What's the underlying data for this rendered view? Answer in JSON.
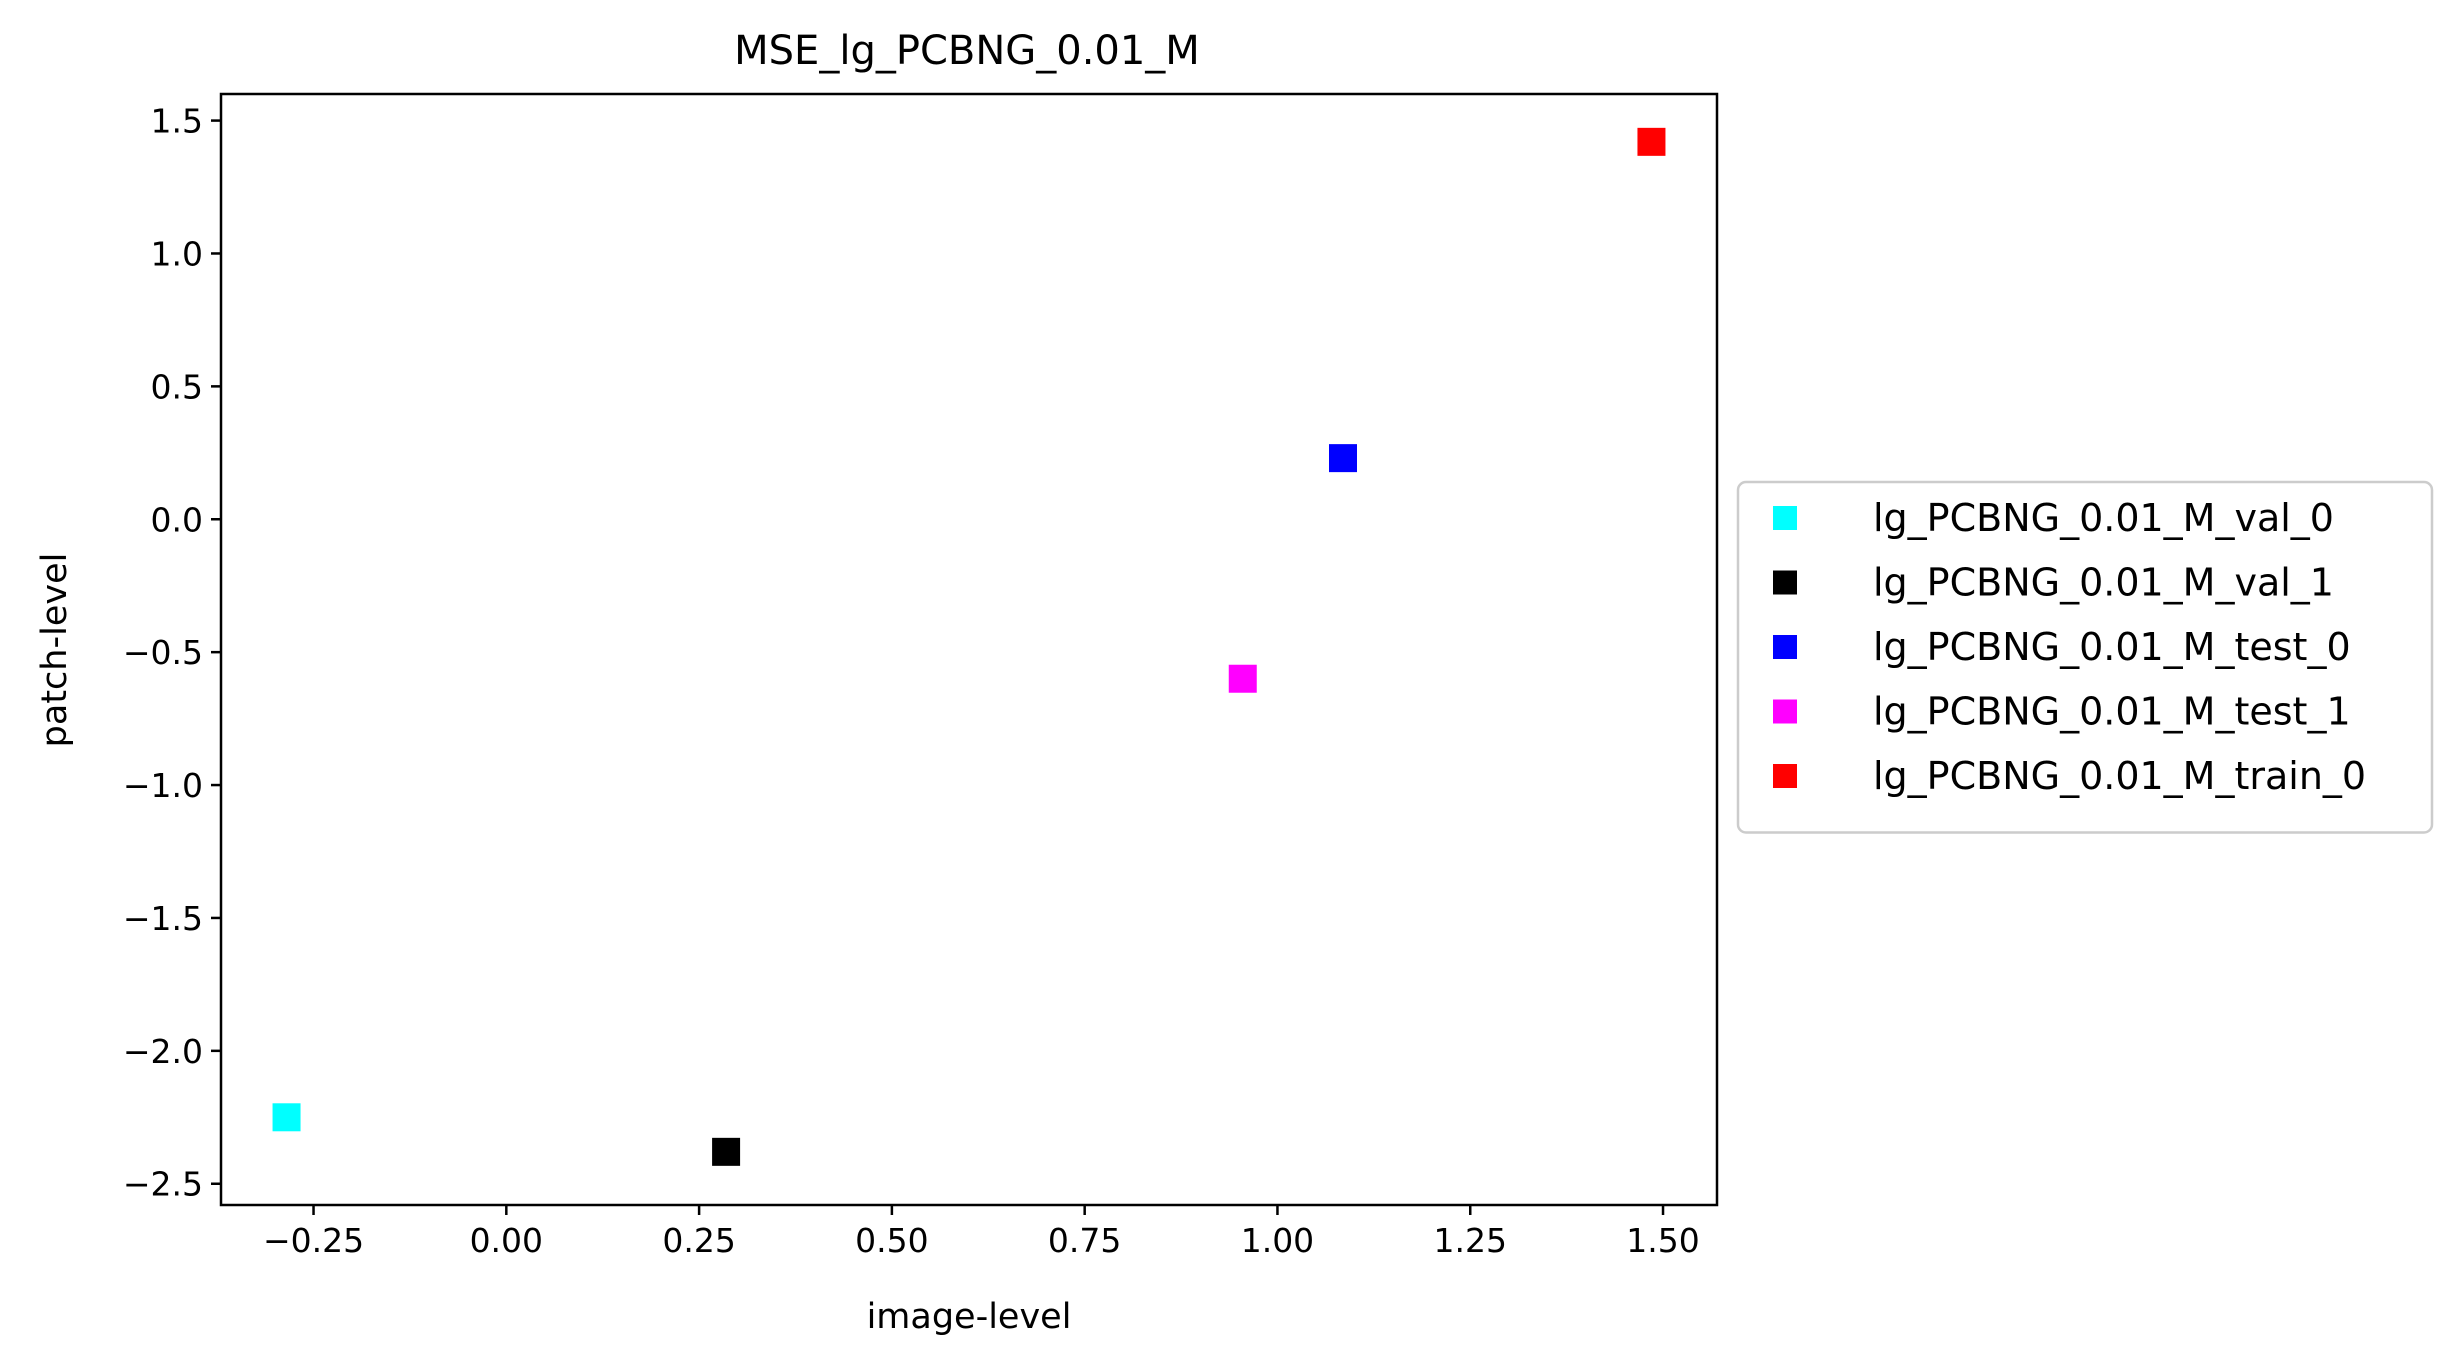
{
  "chart_data": {
    "type": "scatter",
    "title": "MSE_lg_PCBNG_0.01_M",
    "xlabel": "image-level",
    "ylabel": "patch-level",
    "xlim": [
      -0.37,
      1.57
    ],
    "ylim": [
      -2.58,
      1.6
    ],
    "xticks": [
      -0.25,
      0.0,
      0.25,
      0.5,
      0.75,
      1.0,
      1.25,
      1.5
    ],
    "xtick_labels": [
      "−0.25",
      "0.00",
      "0.25",
      "0.50",
      "0.75",
      "1.00",
      "1.25",
      "1.50"
    ],
    "yticks": [
      1.5,
      1.0,
      0.5,
      0.0,
      -0.5,
      -1.0,
      -1.5,
      -2.0,
      -2.5
    ],
    "ytick_labels": [
      "1.5",
      "1.0",
      "0.5",
      "0.0",
      "−0.5",
      "−1.0",
      "−1.5",
      "−2.0",
      "−2.5"
    ],
    "grid": false,
    "legend_position": "outside-right",
    "marker": "square",
    "series": [
      {
        "name": "lg_PCBNG_0.01_M_val_0",
        "color": "#00ffff",
        "x": -0.285,
        "y": -2.25
      },
      {
        "name": "lg_PCBNG_0.01_M_val_1",
        "color": "#000000",
        "x": 0.285,
        "y": -2.38
      },
      {
        "name": "lg_PCBNG_0.01_M_test_0",
        "color": "#0000ff",
        "x": 1.085,
        "y": 0.23
      },
      {
        "name": "lg_PCBNG_0.01_M_test_1",
        "color": "#ff00ff",
        "x": 0.955,
        "y": -0.6
      },
      {
        "name": "lg_PCBNG_0.01_M_train_0",
        "color": "#ff0000",
        "x": 1.485,
        "y": 1.42
      }
    ]
  }
}
